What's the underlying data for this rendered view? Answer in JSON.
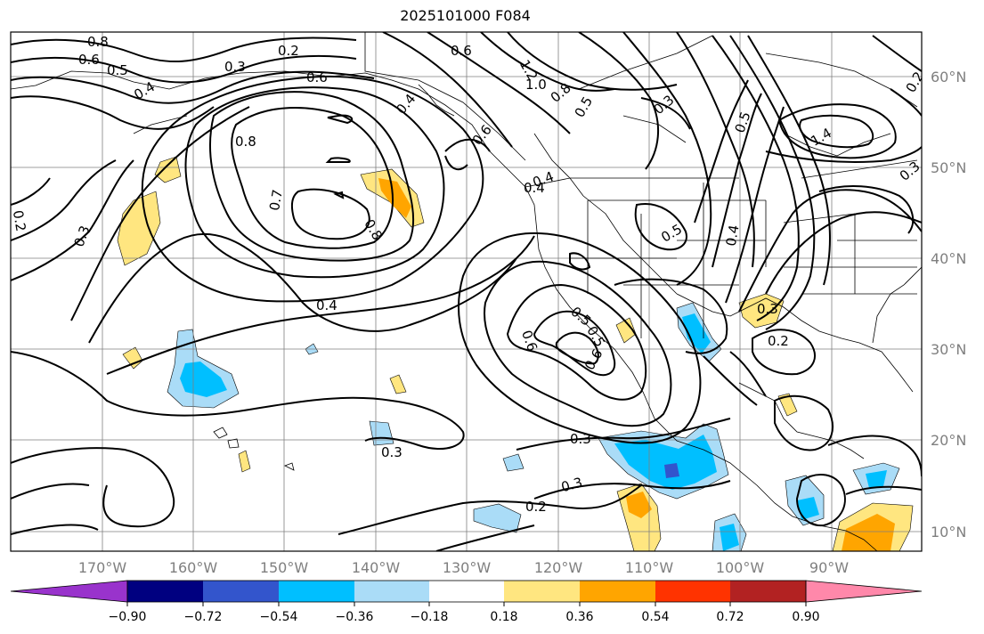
{
  "title": "2025101000 F084",
  "map": {
    "lon_labels": [
      "170°W",
      "160°W",
      "150°W",
      "140°W",
      "130°W",
      "120°W",
      "110°W",
      "100°W",
      "90°W"
    ],
    "lat_labels": [
      "60°N",
      "50°N",
      "40°N",
      "30°N",
      "20°N",
      "10°N"
    ]
  },
  "contour_labels": [
    "0.8",
    "0.6",
    "0.5",
    "0.4",
    "0.3",
    "0.2",
    "0.6",
    "0.6",
    "1.2",
    "1.0",
    "0.8",
    "0.5",
    "0.3",
    "0.5",
    "1.4",
    "0.8",
    "0.7",
    "0.8",
    "0.2",
    "0.3",
    "0.4",
    "0.4",
    "0.5",
    "0.4",
    "0.6",
    "0.5",
    "0.6",
    "0.5",
    "0.3",
    "0.3",
    "0.2",
    "0.3",
    "0.3",
    "0.2",
    "0.4",
    "0.2",
    "0.3",
    "0.6",
    "0.4"
  ],
  "colorbar": {
    "ticks": [
      "−0.90",
      "−0.72",
      "−0.54",
      "−0.36",
      "−0.18",
      "0.18",
      "0.36",
      "0.54",
      "0.72",
      "0.90"
    ],
    "colors": [
      "#9933cc",
      "#000080",
      "#3355cc",
      "#00bfff",
      "#aadcf7",
      "#ffffff",
      "#ffe680",
      "#ffa500",
      "#ff3300",
      "#b22222",
      "#ff88aa"
    ]
  },
  "colors": {
    "pos_light": "#ffe680",
    "pos_mid": "#ffa500",
    "neg_light": "#aadcf7",
    "neg_mid": "#00bfff",
    "neg_dark": "#3355cc"
  }
}
